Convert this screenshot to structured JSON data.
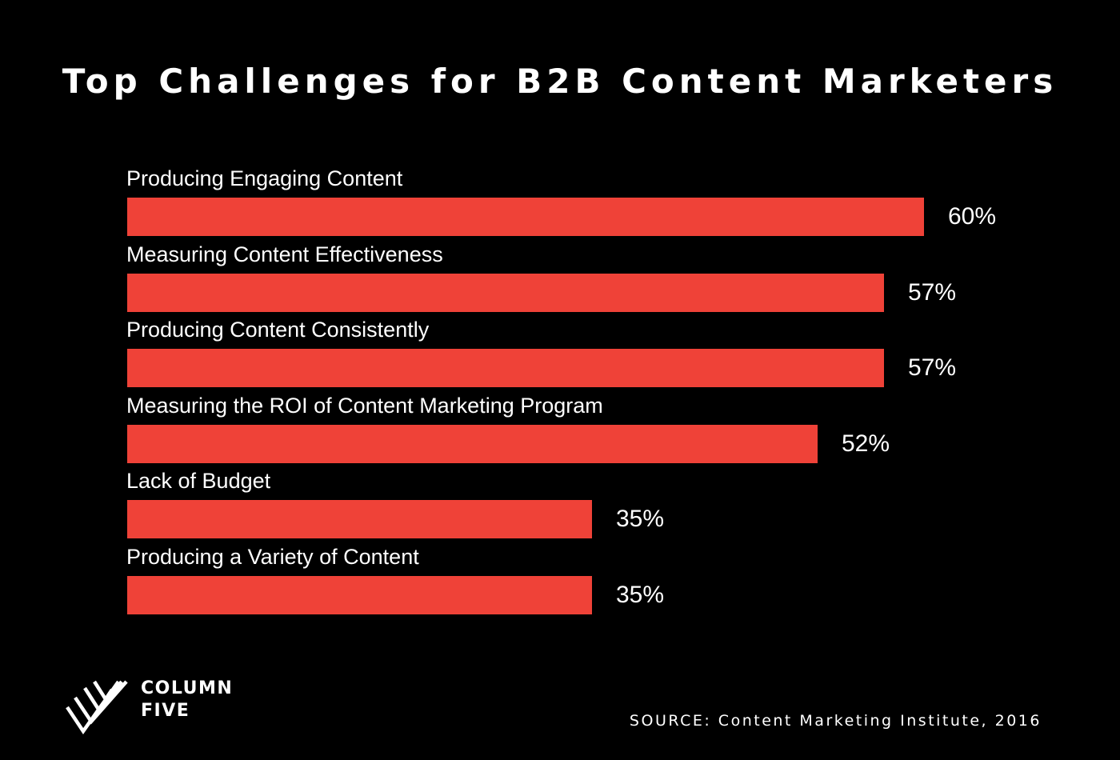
{
  "title": "Top Challenges for B2B Content Marketers",
  "colors": {
    "background": "#000000",
    "bar": "#ef4238",
    "text": "#ffffff"
  },
  "chart_data": {
    "type": "bar",
    "orientation": "horizontal",
    "title": "Top Challenges for B2B Content Marketers",
    "categories": [
      "Producing Engaging Content",
      "Measuring Content Effectiveness",
      "Producing Content Consistently",
      "Measuring the ROI of Content Marketing Program",
      "Lack of Budget",
      "Producing a Variety of Content"
    ],
    "values": [
      60,
      57,
      57,
      52,
      35,
      35
    ],
    "value_labels": [
      "60%",
      "57%",
      "57%",
      "52%",
      "35%",
      "35%"
    ],
    "unit": "%",
    "xlim": [
      0,
      100
    ],
    "xlabel": "",
    "ylabel": "",
    "grid": false,
    "legend": "none"
  },
  "logo": {
    "line1": "COLUMN",
    "line2": "FIVE",
    "icon": "column-five-logo-icon"
  },
  "source": "SOURCE: Content Marketing Institute, 2016"
}
